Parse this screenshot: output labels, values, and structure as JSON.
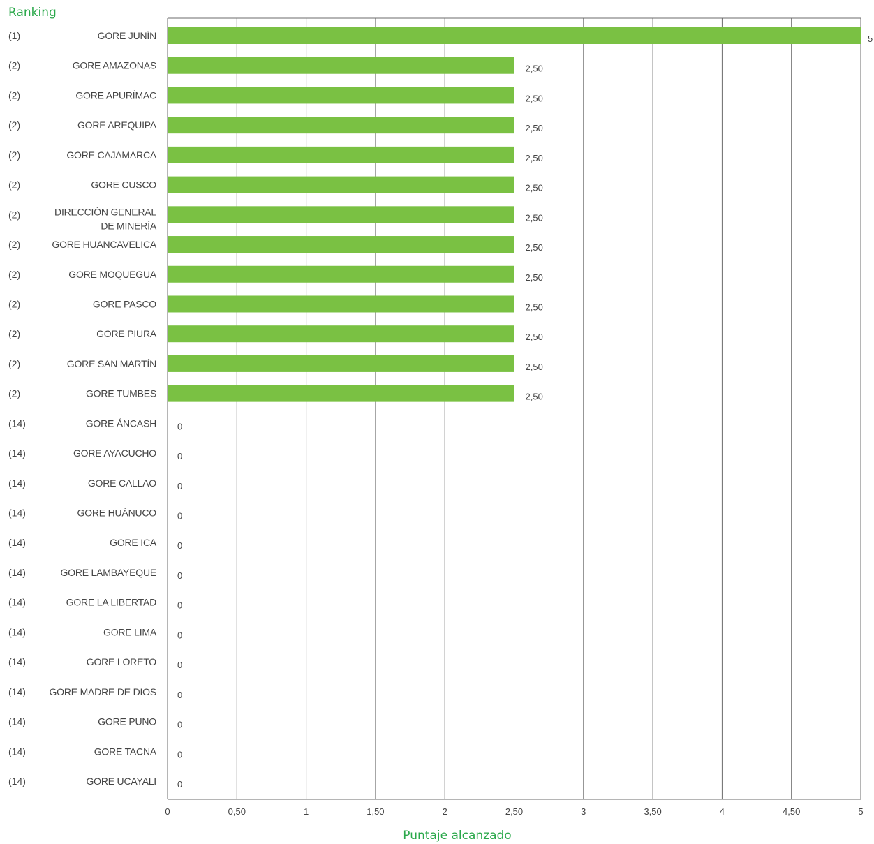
{
  "chart_data": {
    "type": "bar",
    "orientation": "horizontal",
    "rank_header": "Ranking",
    "xlabel": "Puntaje alcanzado",
    "xlim": [
      0,
      5
    ],
    "x_ticks": [
      "0",
      "0,50",
      "1",
      "1,50",
      "2",
      "2,50",
      "3",
      "3,50",
      "4",
      "4,50",
      "5"
    ],
    "grid": "vertical",
    "bar_color": "#7ac143",
    "accent_color": "#2aa84a",
    "rows": [
      {
        "rank": "(1)",
        "name": [
          "GORE JUNÍN"
        ],
        "value": 5,
        "label": "5"
      },
      {
        "rank": "(2)",
        "name": [
          "GORE AMAZONAS"
        ],
        "value": 2.5,
        "label": "2,50"
      },
      {
        "rank": "(2)",
        "name": [
          "GORE APURÍMAC"
        ],
        "value": 2.5,
        "label": "2,50"
      },
      {
        "rank": "(2)",
        "name": [
          "GORE AREQUIPA"
        ],
        "value": 2.5,
        "label": "2,50"
      },
      {
        "rank": "(2)",
        "name": [
          "GORE CAJAMARCA"
        ],
        "value": 2.5,
        "label": "2,50"
      },
      {
        "rank": "(2)",
        "name": [
          "GORE CUSCO"
        ],
        "value": 2.5,
        "label": "2,50"
      },
      {
        "rank": "(2)",
        "name": [
          "DIRECCIÓN GENERAL",
          "DE MINERÍA"
        ],
        "value": 2.5,
        "label": "2,50"
      },
      {
        "rank": "(2)",
        "name": [
          "GORE HUANCAVELICA"
        ],
        "value": 2.5,
        "label": "2,50"
      },
      {
        "rank": "(2)",
        "name": [
          "GORE MOQUEGUA"
        ],
        "value": 2.5,
        "label": "2,50"
      },
      {
        "rank": "(2)",
        "name": [
          "GORE PASCO"
        ],
        "value": 2.5,
        "label": "2,50"
      },
      {
        "rank": "(2)",
        "name": [
          "GORE PIURA"
        ],
        "value": 2.5,
        "label": "2,50"
      },
      {
        "rank": "(2)",
        "name": [
          "GORE SAN MARTÍN"
        ],
        "value": 2.5,
        "label": "2,50"
      },
      {
        "rank": "(2)",
        "name": [
          "GORE TUMBES"
        ],
        "value": 2.5,
        "label": "2,50"
      },
      {
        "rank": "(14)",
        "name": [
          "GORE ÁNCASH"
        ],
        "value": 0,
        "label": "0"
      },
      {
        "rank": "(14)",
        "name": [
          "GORE AYACUCHO"
        ],
        "value": 0,
        "label": "0"
      },
      {
        "rank": "(14)",
        "name": [
          "GORE CALLAO"
        ],
        "value": 0,
        "label": "0"
      },
      {
        "rank": "(14)",
        "name": [
          "GORE HUÁNUCO"
        ],
        "value": 0,
        "label": "0"
      },
      {
        "rank": "(14)",
        "name": [
          "GORE ICA"
        ],
        "value": 0,
        "label": "0"
      },
      {
        "rank": "(14)",
        "name": [
          "GORE LAMBAYEQUE"
        ],
        "value": 0,
        "label": "0"
      },
      {
        "rank": "(14)",
        "name": [
          "GORE LA LIBERTAD"
        ],
        "value": 0,
        "label": "0"
      },
      {
        "rank": "(14)",
        "name": [
          "GORE LIMA"
        ],
        "value": 0,
        "label": "0"
      },
      {
        "rank": "(14)",
        "name": [
          "GORE LORETO"
        ],
        "value": 0,
        "label": "0"
      },
      {
        "rank": "(14)",
        "name": [
          "GORE MADRE DE DIOS"
        ],
        "value": 0,
        "label": "0"
      },
      {
        "rank": "(14)",
        "name": [
          "GORE PUNO"
        ],
        "value": 0,
        "label": "0"
      },
      {
        "rank": "(14)",
        "name": [
          "GORE TACNA"
        ],
        "value": 0,
        "label": "0"
      },
      {
        "rank": "(14)",
        "name": [
          "GORE UCAYALI"
        ],
        "value": 0,
        "label": "0"
      }
    ]
  }
}
